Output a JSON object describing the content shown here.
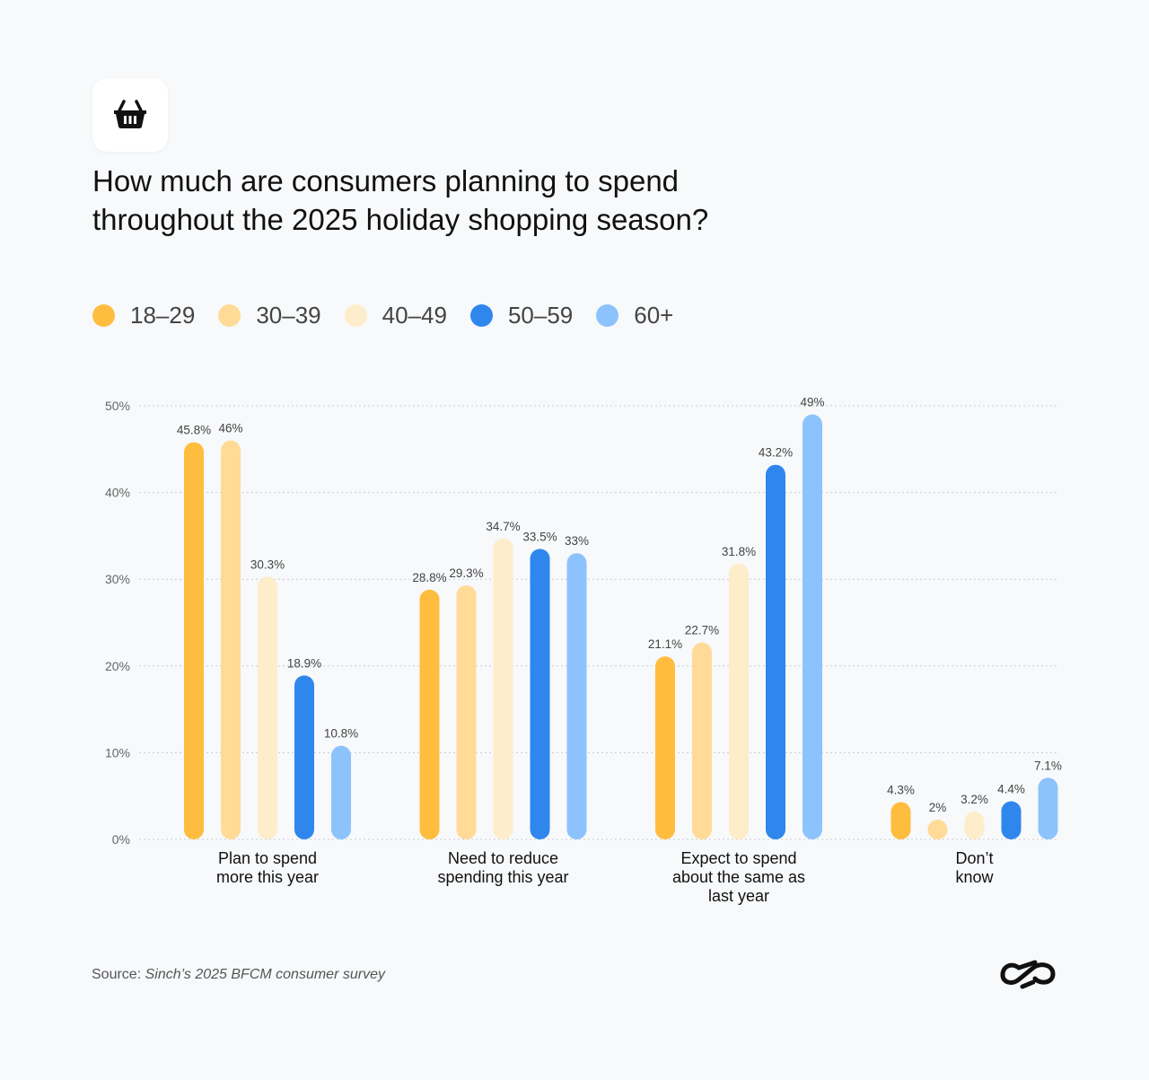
{
  "header": {
    "icon": "shopping-basket-icon",
    "title_line1": "How much are consumers planning to spend",
    "title_line2": "throughout the 2025 holiday shopping season?"
  },
  "footer": {
    "source_prefix": "Source: ",
    "source_text": "Sinch’s 2025 BFCM consumer survey",
    "logo": "sinch-logo"
  },
  "chart_data": {
    "type": "bar",
    "title": "How much are consumers planning to spend throughout the 2025 holiday shopping season?",
    "categories": [
      [
        "Plan to spend",
        "more this year"
      ],
      [
        "Need to reduce",
        "spending this year"
      ],
      [
        "Expect to spend",
        "about the same as",
        "last year"
      ],
      [
        "Don’t",
        "know"
      ]
    ],
    "series": [
      {
        "name": "18-29",
        "color": "#FFBD3F",
        "values": [
          45.8,
          28.8,
          21.1,
          4.3
        ],
        "labels": [
          "45.8%",
          "28.8%",
          "21.1%",
          "4.3%"
        ]
      },
      {
        "name": "30-39",
        "color": "#FFDB97",
        "values": [
          46,
          29.3,
          22.7,
          2
        ],
        "labels": [
          "46%",
          "29.3%",
          "22.7%",
          "2%"
        ]
      },
      {
        "name": "40-49",
        "color": "#FDEDCB",
        "values": [
          30.3,
          34.7,
          31.8,
          3.2
        ],
        "labels": [
          "30.3%",
          "34.7%",
          "31.8%",
          "3.2%"
        ]
      },
      {
        "name": "50-59",
        "color": "#2F87EE",
        "values": [
          18.9,
          33.5,
          43.2,
          4.4
        ],
        "labels": [
          "18.9%",
          "33.5%",
          "43.2%",
          "4.4%"
        ]
      },
      {
        "name": "60+",
        "color": "#8DC3FD",
        "values": [
          10.8,
          33,
          49,
          7.1
        ],
        "labels": [
          "10.8%",
          "33%",
          "49%",
          "7.1%"
        ]
      }
    ],
    "yticks": [
      "0%",
      "10%",
      "20%",
      "30%",
      "40%",
      "50%"
    ],
    "ylim": [
      0,
      50
    ],
    "xlabel": "",
    "ylabel": "",
    "grid": true,
    "legend": "top-left"
  }
}
